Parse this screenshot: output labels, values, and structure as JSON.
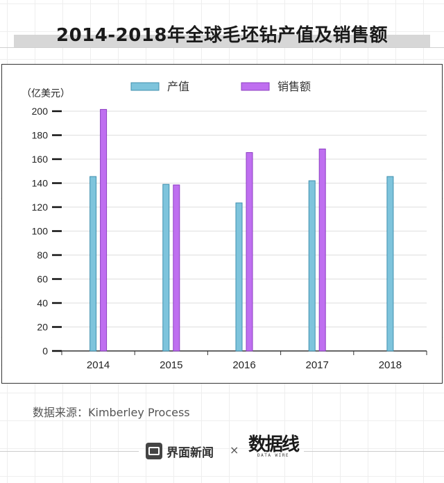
{
  "title": "2014-2018年全球毛坯钻产值及销售额",
  "source": "数据来源：Kimberley Process",
  "footer": {
    "logo1": "界面新闻",
    "separator": "×",
    "logo2": "数据线",
    "logo2_sub": "DATA WIRE"
  },
  "colors": {
    "series1": "#7ec4dc",
    "series2": "#bf6ff0"
  },
  "chart_data": {
    "type": "bar",
    "ylabel": "（亿美元）",
    "ylim": [
      0,
      200
    ],
    "yticks": [
      0,
      20,
      40,
      60,
      80,
      100,
      120,
      140,
      160,
      180,
      200
    ],
    "categories": [
      "2014",
      "2015",
      "2016",
      "2017",
      "2018"
    ],
    "legend_position": "top",
    "grid": true,
    "series": [
      {
        "name": "产值",
        "values": [
          145.5,
          139,
          123.5,
          142,
          145.5
        ]
      },
      {
        "name": "销售额",
        "values": [
          201.5,
          138.5,
          165.5,
          168.5,
          null
        ]
      }
    ]
  }
}
